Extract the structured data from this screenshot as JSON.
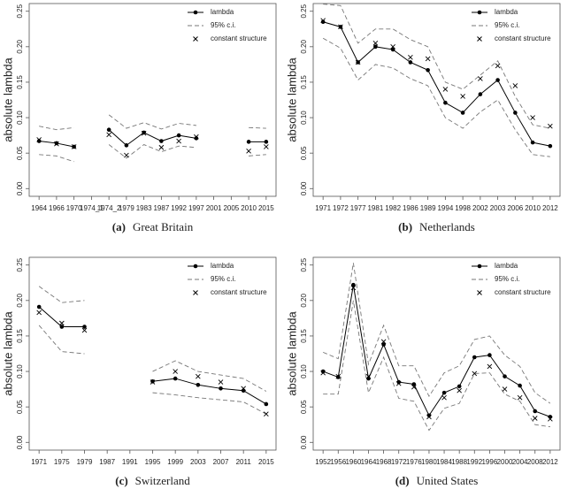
{
  "chart_data": [
    {
      "type": "line",
      "label": "(a)",
      "caption": "Great Britain",
      "ylabel": "absolute lambda",
      "categories": [
        "1964",
        "1966",
        "1970",
        "1974_1",
        "1974_2",
        "1979",
        "1983",
        "1987",
        "1992",
        "1997",
        "2001",
        "2005",
        "2010",
        "2015"
      ],
      "ylim": [
        0,
        0.25
      ],
      "yticks": [
        {
          "value": 0,
          "label": "0.00"
        },
        0.05,
        {
          "value": 0.1,
          "label": "0.10"
        },
        0.15,
        {
          "value": 0.2,
          "label": "0.20"
        },
        0.25
      ],
      "series": [
        {
          "name": "lambda",
          "color": "#000000",
          "values": [
            0.067,
            0.064,
            0.059,
            null,
            0.083,
            0.061,
            0.079,
            0.067,
            0.075,
            0.071,
            null,
            null,
            0.066,
            0.066
          ]
        },
        {
          "name": "95% c.i.",
          "color": "#777777",
          "upper": [
            0.088,
            0.083,
            0.086,
            null,
            0.104,
            0.085,
            0.093,
            0.084,
            0.092,
            0.089,
            null,
            null,
            0.086,
            0.085
          ],
          "lower": [
            0.048,
            0.046,
            0.038,
            null,
            0.062,
            0.043,
            0.062,
            0.052,
            0.06,
            0.058,
            null,
            null,
            0.046,
            0.048
          ]
        },
        {
          "name": "constant structure",
          "color": "#000000",
          "values": [
            0.069,
            0.063,
            0.059,
            null,
            0.076,
            0.047,
            0.078,
            0.058,
            0.067,
            0.073,
            null,
            null,
            0.053,
            0.059
          ]
        }
      ]
    },
    {
      "type": "line",
      "label": "(b)",
      "caption": "Netherlands",
      "ylabel": "absolute lambda",
      "categories": [
        "1971",
        "1972",
        "1977",
        "1981",
        "1982",
        "1986",
        "1989",
        "1994",
        "1998",
        "2002",
        "2003",
        "2006",
        "2010",
        "2012"
      ],
      "ylim": [
        0,
        0.25
      ],
      "yticks": [
        {
          "value": 0,
          "label": "0.00"
        },
        0.05,
        {
          "value": 0.1,
          "label": "0.10"
        },
        0.15,
        {
          "value": 0.2,
          "label": "0.20"
        },
        0.25
      ],
      "series": [
        {
          "name": "lambda",
          "color": "#000000",
          "values": [
            0.235,
            0.228,
            0.178,
            0.2,
            0.196,
            0.178,
            0.167,
            0.121,
            0.107,
            0.133,
            0.153,
            0.107,
            0.065,
            0.06
          ]
        },
        {
          "name": "95% c.i.",
          "color": "#777777",
          "upper": [
            0.26,
            0.258,
            0.205,
            0.225,
            0.225,
            0.21,
            0.2,
            0.15,
            0.14,
            0.16,
            0.18,
            0.13,
            0.09,
            0.085
          ],
          "lower": [
            0.212,
            0.198,
            0.153,
            0.175,
            0.17,
            0.155,
            0.145,
            0.1,
            0.085,
            0.108,
            0.125,
            0.083,
            0.048,
            0.045
          ]
        },
        {
          "name": "constant structure",
          "color": "#000000",
          "values": [
            0.237,
            0.228,
            0.178,
            0.205,
            0.2,
            0.185,
            0.183,
            0.14,
            0.13,
            0.155,
            0.173,
            0.145,
            0.1,
            0.088
          ]
        }
      ]
    },
    {
      "type": "line",
      "label": "(c)",
      "caption": "Switzerland",
      "ylabel": "absolute lambda",
      "categories": [
        "1971",
        "1975",
        "1979",
        "1987",
        "1991",
        "1995",
        "1999",
        "2003",
        "2007",
        "2011",
        "2015"
      ],
      "ylim": [
        0,
        0.25
      ],
      "yticks": [
        {
          "value": 0,
          "label": "0.00"
        },
        0.05,
        {
          "value": 0.1,
          "label": "0.10"
        },
        0.15,
        {
          "value": 0.2,
          "label": "0.20"
        },
        0.25
      ],
      "series": [
        {
          "name": "lambda",
          "color": "#000000",
          "values": [
            0.191,
            0.163,
            0.163,
            null,
            null,
            0.086,
            0.09,
            0.081,
            0.076,
            0.073,
            0.054
          ]
        },
        {
          "name": "95% c.i.",
          "color": "#777777",
          "upper": [
            0.22,
            0.197,
            0.2,
            null,
            null,
            0.1,
            0.115,
            0.1,
            0.095,
            0.09,
            0.072
          ],
          "lower": [
            0.165,
            0.128,
            0.125,
            null,
            null,
            0.07,
            0.067,
            0.063,
            0.06,
            0.057,
            0.04
          ]
        },
        {
          "name": "constant structure",
          "color": "#000000",
          "values": [
            0.183,
            0.168,
            0.158,
            null,
            null,
            0.085,
            0.1,
            0.093,
            0.085,
            0.076,
            0.04
          ]
        }
      ]
    },
    {
      "type": "line",
      "label": "(d)",
      "caption": "United States",
      "ylabel": "absolute lambda",
      "categories": [
        "1952",
        "1956",
        "1960",
        "1964",
        "1968",
        "1972",
        "1976",
        "1980",
        "1984",
        "1988",
        "1992",
        "1996",
        "2000",
        "2004",
        "2008",
        "2012"
      ],
      "ylim": [
        0,
        0.25
      ],
      "yticks": [
        {
          "value": 0,
          "label": "0.00"
        },
        0.05,
        {
          "value": 0.1,
          "label": "0.10"
        },
        0.15,
        {
          "value": 0.2,
          "label": "0.20"
        },
        0.25
      ],
      "series": [
        {
          "name": "lambda",
          "color": "#000000",
          "values": [
            0.1,
            0.092,
            0.222,
            0.09,
            0.138,
            0.085,
            0.082,
            0.038,
            0.07,
            0.079,
            0.12,
            0.123,
            0.093,
            0.08,
            0.044,
            0.036
          ]
        },
        {
          "name": "95% c.i.",
          "color": "#777777",
          "upper": [
            0.127,
            0.118,
            0.253,
            0.11,
            0.165,
            0.108,
            0.108,
            0.065,
            0.098,
            0.108,
            0.145,
            0.15,
            0.123,
            0.107,
            0.07,
            0.055
          ],
          "lower": [
            0.068,
            0.068,
            0.2,
            0.07,
            0.12,
            0.062,
            0.058,
            0.017,
            0.048,
            0.055,
            0.097,
            0.098,
            0.068,
            0.058,
            0.025,
            0.022
          ]
        },
        {
          "name": "constant structure",
          "color": "#000000",
          "values": [
            0.098,
            0.093,
            0.218,
            0.093,
            0.142,
            0.083,
            0.078,
            0.036,
            0.063,
            0.073,
            0.097,
            0.107,
            0.075,
            0.063,
            0.034,
            0.033
          ]
        }
      ]
    }
  ]
}
